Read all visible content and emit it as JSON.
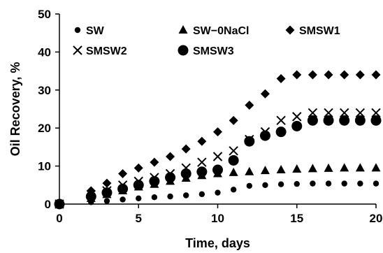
{
  "chart_data": {
    "type": "scatter",
    "xlabel": "Time, days",
    "ylabel": "Oil Recovery, %",
    "xlim": [
      0,
      20
    ],
    "ylim": [
      0,
      50
    ],
    "xticks": [
      0,
      5,
      10,
      15,
      20
    ],
    "yticks": [
      0,
      10,
      20,
      30,
      40,
      50
    ],
    "grid": false,
    "legend_position": "top",
    "series": [
      {
        "name": "SW",
        "marker": "small-circle",
        "color": "#000000",
        "x": [
          0,
          2,
          3,
          4,
          5,
          6,
          7,
          8,
          9,
          10,
          11,
          12,
          13,
          14,
          15,
          16,
          17,
          18,
          19,
          20
        ],
        "y": [
          0,
          0.5,
          0.8,
          1.2,
          1.5,
          1.8,
          2.0,
          2.3,
          2.6,
          3.0,
          3.8,
          4.8,
          5.0,
          5.2,
          5.3,
          5.4,
          5.4,
          5.4,
          5.4,
          5.4
        ]
      },
      {
        "name": "SW−0NaCl",
        "marker": "triangle",
        "color": "#000000",
        "x": [
          0,
          2,
          3,
          4,
          5,
          6,
          7,
          8,
          9,
          10,
          11,
          12,
          13,
          14,
          15,
          16,
          17,
          18,
          19,
          20
        ],
        "y": [
          0,
          1.5,
          2.5,
          3.5,
          4.5,
          5.2,
          6.0,
          6.8,
          7.5,
          8.0,
          8.3,
          8.5,
          8.8,
          9.0,
          9.2,
          9.3,
          9.4,
          9.5,
          9.5,
          9.5
        ]
      },
      {
        "name": "SMSW1",
        "marker": "diamond",
        "color": "#000000",
        "x": [
          0,
          2,
          3,
          4,
          5,
          6,
          7,
          8,
          9,
          10,
          11,
          12,
          13,
          14,
          15,
          16,
          17,
          18,
          19,
          20
        ],
        "y": [
          0,
          3.5,
          5.5,
          8.0,
          9.5,
          11.0,
          12.5,
          14.5,
          16.5,
          19.0,
          22.0,
          26.0,
          29.0,
          33.0,
          34.0,
          34.0,
          34.0,
          34.0,
          34.0,
          34.0
        ]
      },
      {
        "name": "SMSW2",
        "marker": "cross",
        "color": "#000000",
        "x": [
          0,
          2,
          3,
          4,
          5,
          6,
          7,
          8,
          9,
          10,
          11,
          12,
          13,
          14,
          15,
          16,
          17,
          18,
          19,
          20
        ],
        "y": [
          0,
          2.5,
          3.5,
          5.0,
          6.0,
          7.0,
          8.0,
          9.5,
          11.0,
          12.5,
          14.0,
          17.0,
          19.0,
          22.0,
          23.0,
          24.0,
          24.0,
          24.0,
          24.0,
          24.0
        ]
      },
      {
        "name": "SMSW3",
        "marker": "large-circle",
        "color": "#000000",
        "x": [
          0,
          2,
          3,
          4,
          5,
          6,
          7,
          8,
          9,
          10,
          11,
          12,
          13,
          14,
          15,
          16,
          17,
          18,
          19,
          20
        ],
        "y": [
          0,
          2.0,
          3.0,
          4.0,
          5.0,
          6.0,
          7.0,
          8.0,
          8.5,
          9.0,
          11.5,
          16.5,
          18.0,
          19.0,
          20.5,
          22.0,
          22.0,
          22.0,
          22.0,
          22.0
        ]
      }
    ]
  }
}
